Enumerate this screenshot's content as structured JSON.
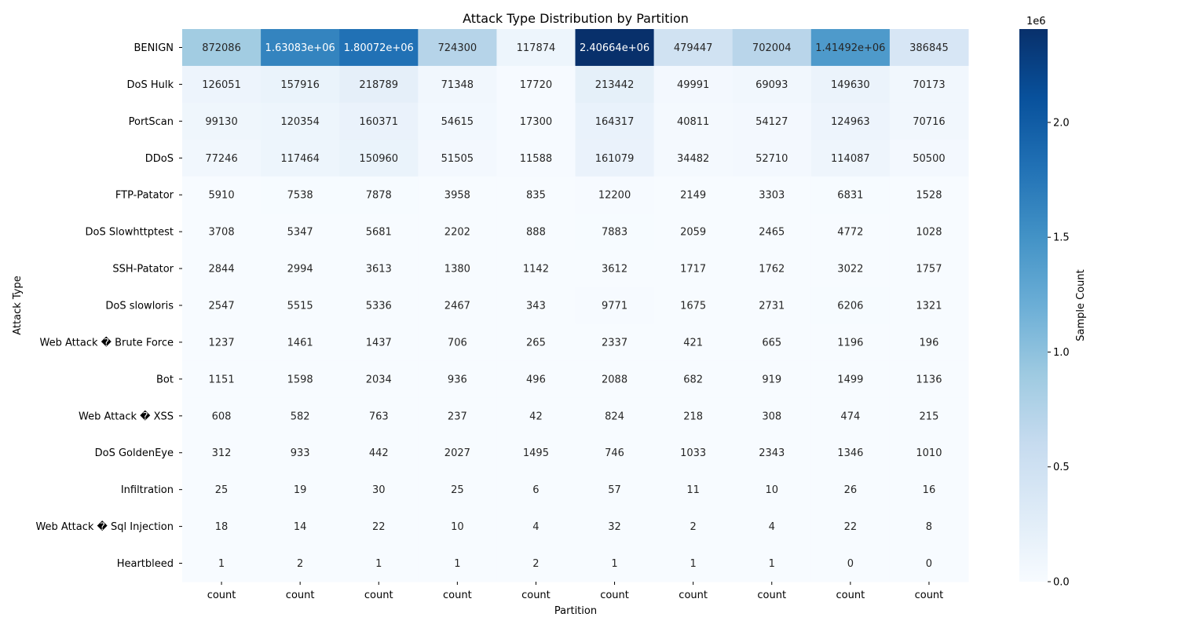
{
  "chart_data": {
    "type": "heatmap",
    "title": "Attack Type Distribution by Partition",
    "xlabel": "Partition",
    "ylabel": "Attack Type",
    "x_categories": [
      "count",
      "count",
      "count",
      "count",
      "count",
      "count",
      "count",
      "count",
      "count",
      "count"
    ],
    "y_categories": [
      "BENIGN",
      "DoS Hulk",
      "PortScan",
      "DDoS",
      "FTP-Patator",
      "DoS Slowhttptest",
      "SSH-Patator",
      "DoS slowloris",
      "Web Attack � Brute Force",
      "Bot",
      "Web Attack � XSS",
      "DoS GoldenEye",
      "Infiltration",
      "Web Attack � Sql Injection",
      "Heartbleed"
    ],
    "values": [
      [
        872086,
        1630830,
        1800720,
        724300,
        117874,
        2406640,
        479447,
        702004,
        1414920,
        386845
      ],
      [
        126051,
        157916,
        218789,
        71348,
        17720,
        213442,
        49991,
        69093,
        149630,
        70173
      ],
      [
        99130,
        120354,
        160371,
        54615,
        17300,
        164317,
        40811,
        54127,
        124963,
        70716
      ],
      [
        77246,
        117464,
        150960,
        51505,
        11588,
        161079,
        34482,
        52710,
        114087,
        50500
      ],
      [
        5910,
        7538,
        7878,
        3958,
        835,
        12200,
        2149,
        3303,
        6831,
        1528
      ],
      [
        3708,
        5347,
        5681,
        2202,
        888,
        7883,
        2059,
        2465,
        4772,
        1028
      ],
      [
        2844,
        2994,
        3613,
        1380,
        1142,
        3612,
        1717,
        1762,
        3022,
        1757
      ],
      [
        2547,
        5515,
        5336,
        2467,
        343,
        9771,
        1675,
        2731,
        6206,
        1321
      ],
      [
        1237,
        1461,
        1437,
        706,
        265,
        2337,
        421,
        665,
        1196,
        196
      ],
      [
        1151,
        1598,
        2034,
        936,
        496,
        2088,
        682,
        919,
        1499,
        1136
      ],
      [
        608,
        582,
        763,
        237,
        42,
        824,
        218,
        308,
        474,
        215
      ],
      [
        312,
        933,
        442,
        2027,
        1495,
        746,
        1033,
        2343,
        1346,
        1010
      ],
      [
        25,
        19,
        30,
        25,
        6,
        57,
        11,
        10,
        26,
        16
      ],
      [
        18,
        14,
        22,
        10,
        4,
        32,
        2,
        4,
        22,
        8
      ],
      [
        1,
        2,
        1,
        1,
        2,
        1,
        1,
        1,
        0,
        0
      ]
    ],
    "value_labels": [
      [
        "872086",
        "1.63083e+06",
        "1.80072e+06",
        "724300",
        "117874",
        "2.40664e+06",
        "479447",
        "702004",
        "1.41492e+06",
        "386845"
      ],
      [
        "126051",
        "157916",
        "218789",
        "71348",
        "17720",
        "213442",
        "49991",
        "69093",
        "149630",
        "70173"
      ],
      [
        "99130",
        "120354",
        "160371",
        "54615",
        "17300",
        "164317",
        "40811",
        "54127",
        "124963",
        "70716"
      ],
      [
        "77246",
        "117464",
        "150960",
        "51505",
        "11588",
        "161079",
        "34482",
        "52710",
        "114087",
        "50500"
      ],
      [
        "5910",
        "7538",
        "7878",
        "3958",
        "835",
        "12200",
        "2149",
        "3303",
        "6831",
        "1528"
      ],
      [
        "3708",
        "5347",
        "5681",
        "2202",
        "888",
        "7883",
        "2059",
        "2465",
        "4772",
        "1028"
      ],
      [
        "2844",
        "2994",
        "3613",
        "1380",
        "1142",
        "3612",
        "1717",
        "1762",
        "3022",
        "1757"
      ],
      [
        "2547",
        "5515",
        "5336",
        "2467",
        "343",
        "9771",
        "1675",
        "2731",
        "6206",
        "1321"
      ],
      [
        "1237",
        "1461",
        "1437",
        "706",
        "265",
        "2337",
        "421",
        "665",
        "1196",
        "196"
      ],
      [
        "1151",
        "1598",
        "2034",
        "936",
        "496",
        "2088",
        "682",
        "919",
        "1499",
        "1136"
      ],
      [
        "608",
        "582",
        "763",
        "237",
        "42",
        "824",
        "218",
        "308",
        "474",
        "215"
      ],
      [
        "312",
        "933",
        "442",
        "2027",
        "1495",
        "746",
        "1033",
        "2343",
        "1346",
        "1010"
      ],
      [
        "25",
        "19",
        "30",
        "25",
        "6",
        "57",
        "11",
        "10",
        "26",
        "16"
      ],
      [
        "18",
        "14",
        "22",
        "10",
        "4",
        "32",
        "2",
        "4",
        "22",
        "8"
      ],
      [
        "1",
        "2",
        "1",
        "1",
        "2",
        "1",
        "1",
        "1",
        "0",
        "0"
      ]
    ],
    "colormap": "Blues",
    "colorbar": {
      "label": "Sample Count",
      "range": [
        0,
        2406640
      ],
      "ticks": [
        0,
        0.5,
        1.0,
        1.5,
        2.0
      ],
      "tick_labels": [
        "0.0",
        "0.5",
        "1.0",
        "1.5",
        "2.0"
      ],
      "multiplier_label": "1e6"
    }
  }
}
